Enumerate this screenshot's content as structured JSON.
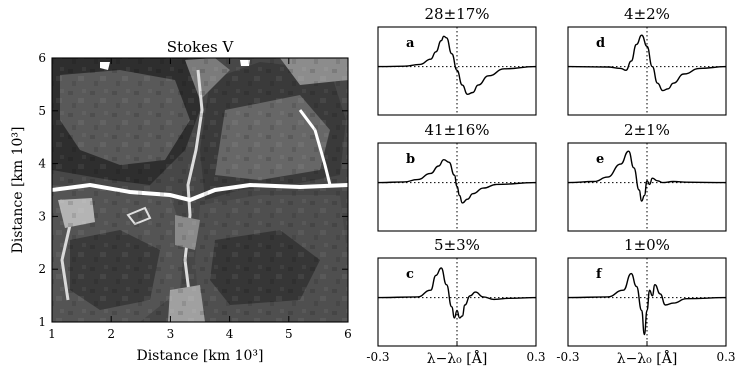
{
  "chart_data": [
    {
      "type": "heatmap",
      "title": "Stokes V",
      "xlabel": "Distance [km 10³]",
      "ylabel": "Distance [km 10³]",
      "xlim": [
        1,
        6
      ],
      "ylim": [
        1,
        6
      ],
      "xticks": [
        "1",
        "2",
        "3",
        "4",
        "5",
        "6"
      ],
      "yticks": [
        "1",
        "2",
        "3",
        "4",
        "5",
        "6"
      ],
      "colors": [
        "#2f2f2f",
        "#454545",
        "#5c5c5c",
        "#797979",
        "#a6a6a6",
        "#dcdcdc",
        "#ffffff"
      ]
    },
    {
      "type": "line",
      "xlabel": "λ−λ₀ [Å]",
      "xlim": [
        -0.3,
        0.3
      ],
      "xticks": [
        "-0.3",
        "0.0",
        "0.3"
      ],
      "panels": [
        {
          "id": "a",
          "title": "28±17%",
          "x": [
            -0.3,
            -0.2,
            -0.14,
            -0.1,
            -0.08,
            -0.06,
            -0.05,
            -0.04,
            -0.02,
            0.0,
            0.02,
            0.04,
            0.06,
            0.08,
            0.12,
            0.18,
            0.3
          ],
          "y": [
            0,
            0.01,
            0.06,
            0.2,
            0.4,
            0.7,
            0.82,
            0.78,
            0.35,
            -0.1,
            -0.5,
            -0.75,
            -0.7,
            -0.5,
            -0.25,
            -0.06,
            0
          ]
        },
        {
          "id": "b",
          "title": "41±16%",
          "x": [
            -0.3,
            -0.2,
            -0.15,
            -0.1,
            -0.07,
            -0.05,
            -0.03,
            -0.01,
            0.0,
            0.01,
            0.02,
            0.04,
            0.06,
            0.1,
            0.15,
            0.3
          ],
          "y": [
            0,
            0.02,
            0.08,
            0.25,
            0.45,
            0.62,
            0.55,
            0.2,
            -0.1,
            -0.35,
            -0.55,
            -0.45,
            -0.3,
            -0.15,
            -0.05,
            0
          ]
        },
        {
          "id": "c",
          "title": "5±3%",
          "x": [
            -0.3,
            -0.15,
            -0.1,
            -0.08,
            -0.06,
            -0.04,
            -0.02,
            -0.01,
            0.0,
            0.01,
            0.02,
            0.03,
            0.05,
            0.07,
            0.1,
            0.14,
            0.2,
            0.3
          ],
          "y": [
            0,
            0.02,
            0.2,
            0.6,
            0.8,
            0.35,
            -0.25,
            -0.55,
            -0.35,
            -0.55,
            -0.5,
            -0.2,
            0.05,
            0.15,
            0.02,
            -0.05,
            -0.02,
            0
          ]
        },
        {
          "id": "d",
          "title": "4±2%",
          "x": [
            -0.3,
            -0.15,
            -0.1,
            -0.08,
            -0.06,
            -0.04,
            -0.02,
            0.0,
            0.02,
            0.04,
            0.06,
            0.08,
            0.1,
            0.14,
            0.2,
            0.3
          ],
          "y": [
            0,
            -0.01,
            -0.05,
            -0.1,
            0.15,
            0.6,
            0.85,
            0.55,
            0.0,
            -0.45,
            -0.65,
            -0.6,
            -0.45,
            -0.2,
            -0.05,
            0
          ]
        },
        {
          "id": "e",
          "title": "2±1%",
          "x": [
            -0.3,
            -0.2,
            -0.15,
            -0.1,
            -0.07,
            -0.05,
            -0.03,
            -0.02,
            -0.01,
            0.0,
            0.01,
            0.02,
            0.04,
            0.06,
            0.1,
            0.15,
            0.3
          ],
          "y": [
            0,
            0.03,
            0.15,
            0.5,
            0.85,
            0.4,
            -0.2,
            -0.5,
            -0.35,
            0.05,
            -0.05,
            0.12,
            0.05,
            0.0,
            0.03,
            0.01,
            0
          ]
        },
        {
          "id": "f",
          "title": "1±0%",
          "x": [
            -0.3,
            -0.15,
            -0.09,
            -0.06,
            -0.04,
            -0.02,
            -0.01,
            0.0,
            0.01,
            0.02,
            0.03,
            0.05,
            0.07,
            0.1,
            0.15,
            0.3
          ],
          "y": [
            0,
            0.02,
            0.2,
            0.65,
            0.3,
            -0.35,
            -1.0,
            -0.35,
            0.2,
            0.05,
            0.35,
            0.1,
            -0.2,
            -0.15,
            -0.03,
            0
          ]
        }
      ]
    }
  ]
}
